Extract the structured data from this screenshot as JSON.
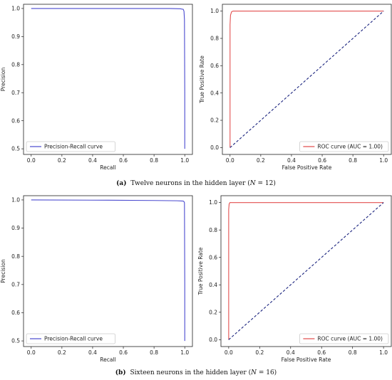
{
  "captions": [
    {
      "letter": "(a)",
      "text": "Twelve neurons in the hidden layer (",
      "var": "N",
      "rest": " = 12)"
    },
    {
      "letter": "(b)",
      "text": "Sixteen neurons in the hidden layer (",
      "var": "N",
      "rest": " = 16)"
    }
  ],
  "colors": {
    "pr": "#4a4acf",
    "roc": "#e25050",
    "diag": "#1a237e"
  },
  "chart_data": [
    {
      "id": "a-pr",
      "type": "line",
      "title": "",
      "xlabel": "Recall",
      "ylabel": "Precision",
      "xlim": [
        -0.05,
        1.05
      ],
      "ylim": [
        0.48,
        1.015
      ],
      "xticks": [
        0.0,
        0.2,
        0.4,
        0.6,
        0.8,
        1.0
      ],
      "yticks": [
        0.5,
        0.6,
        0.7,
        0.8,
        0.9,
        1.0
      ],
      "legend_position": "lower-left",
      "series": [
        {
          "name": "Precision-Recall curve",
          "style": "solid",
          "color": "#4a4acf",
          "x": [
            0.0,
            0.5,
            0.9,
            0.97,
            0.99,
            0.995,
            0.998,
            1.0,
            1.0
          ],
          "y": [
            1.0,
            1.0,
            1.0,
            0.999,
            0.997,
            0.99,
            0.96,
            0.7,
            0.5
          ]
        }
      ]
    },
    {
      "id": "a-roc",
      "type": "line",
      "title": "",
      "xlabel": "False Positive Rate",
      "ylabel": "True Positive Rate",
      "xlim": [
        -0.05,
        1.05
      ],
      "ylim": [
        -0.05,
        1.05
      ],
      "xticks": [
        0.0,
        0.2,
        0.4,
        0.6,
        0.8,
        1.0
      ],
      "yticks": [
        0.0,
        0.2,
        0.4,
        0.6,
        0.8,
        1.0
      ],
      "legend_position": "lower-right",
      "series": [
        {
          "name": "ROC curve (AUC = 1.00)",
          "style": "solid",
          "color": "#e25050",
          "x": [
            0.0,
            0.0,
            0.003,
            0.01,
            0.02,
            1.0
          ],
          "y": [
            0.0,
            0.9,
            0.97,
            0.995,
            1.0,
            1.0
          ]
        },
        {
          "name": "",
          "style": "dashed",
          "color": "#1a237e",
          "x": [
            0.0,
            1.0
          ],
          "y": [
            0.0,
            1.0
          ]
        }
      ]
    },
    {
      "id": "b-pr",
      "type": "line",
      "title": "",
      "xlabel": "Recall",
      "ylabel": "Precision",
      "xlim": [
        -0.05,
        1.05
      ],
      "ylim": [
        0.48,
        1.015
      ],
      "xticks": [
        0.0,
        0.2,
        0.4,
        0.6,
        0.8,
        1.0
      ],
      "yticks": [
        0.5,
        0.6,
        0.7,
        0.8,
        0.9,
        1.0
      ],
      "legend_position": "lower-left",
      "series": [
        {
          "name": "Precision-Recall curve",
          "style": "solid",
          "color": "#4a4acf",
          "x": [
            0.0,
            0.5,
            0.8,
            0.95,
            0.99,
            0.995,
            0.998,
            1.0,
            1.0
          ],
          "y": [
            1.0,
            0.999,
            0.998,
            0.997,
            0.996,
            0.994,
            0.99,
            0.7,
            0.5
          ]
        }
      ]
    },
    {
      "id": "b-roc",
      "type": "line",
      "title": "",
      "xlabel": "False Positive Rate",
      "ylabel": "True Positive Rate",
      "xlim": [
        -0.05,
        1.05
      ],
      "ylim": [
        -0.05,
        1.05
      ],
      "xticks": [
        0.0,
        0.2,
        0.4,
        0.6,
        0.8,
        1.0
      ],
      "yticks": [
        0.0,
        0.2,
        0.4,
        0.6,
        0.8,
        1.0
      ],
      "legend_position": "lower-right",
      "series": [
        {
          "name": "ROC curve (AUC = 1.00)",
          "style": "solid",
          "color": "#e25050",
          "x": [
            0.0,
            0.0,
            0.003,
            0.008,
            1.0
          ],
          "y": [
            0.0,
            0.95,
            0.99,
            1.0,
            1.0
          ]
        },
        {
          "name": "",
          "style": "dashed",
          "color": "#1a237e",
          "x": [
            0.0,
            1.0
          ],
          "y": [
            0.0,
            1.0
          ]
        }
      ]
    }
  ]
}
